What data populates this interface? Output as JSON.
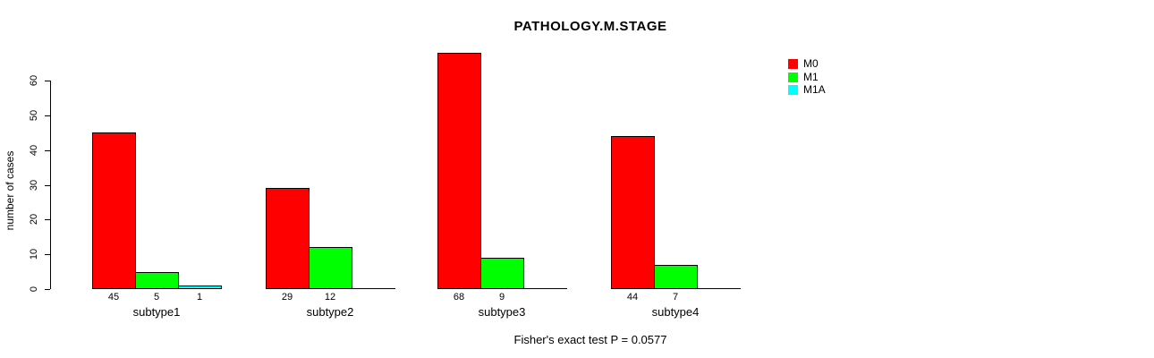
{
  "chart_data": {
    "type": "bar",
    "title": "PATHOLOGY.M.STAGE",
    "xlabel": "",
    "ylabel": "number of cases",
    "categories": [
      "subtype1",
      "subtype2",
      "subtype3",
      "subtype4"
    ],
    "series": [
      {
        "name": "M0",
        "color": "#ff0000",
        "values": [
          45,
          29,
          68,
          44
        ]
      },
      {
        "name": "M1",
        "color": "#00ff00",
        "values": [
          5,
          12,
          9,
          7
        ]
      },
      {
        "name": "M1A",
        "color": "#00ffff",
        "values": [
          1,
          0,
          0,
          0
        ]
      }
    ],
    "ylim": [
      0,
      60
    ],
    "yticks": [
      0,
      10,
      20,
      30,
      40,
      50,
      60
    ],
    "grid": false,
    "legend_position": "right",
    "bar_border_color": "#000000",
    "background_color": "#ffffff",
    "annotation": "Fisher's exact test P = 0.0577"
  }
}
